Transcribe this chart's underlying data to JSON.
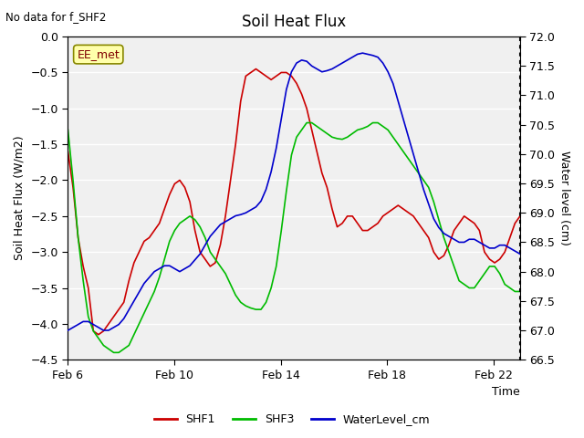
{
  "title": "Soil Heat Flux",
  "top_left_text": "No data for f_SHF2",
  "annotation_box": "EE_met",
  "xlabel": "Time",
  "ylabel_left": "Soil Heat Flux (W/m2)",
  "ylabel_right": "Water level (cm)",
  "ylim_left": [
    -4.5,
    0.0
  ],
  "ylim_right": [
    66.5,
    72.0
  ],
  "yticks_left": [
    0.0,
    -0.5,
    -1.0,
    -1.5,
    -2.0,
    -2.5,
    -3.0,
    -3.5,
    -4.0,
    -4.5
  ],
  "yticks_right": [
    66.5,
    67.0,
    67.5,
    68.0,
    68.5,
    69.0,
    69.5,
    70.0,
    70.5,
    71.0,
    71.5,
    72.0
  ],
  "xtick_labels": [
    "Feb 6",
    "Feb 10",
    "Feb 14",
    "Feb 18",
    "Feb 22"
  ],
  "xtick_positions": [
    0,
    4,
    8,
    12,
    16
  ],
  "color_shf1": "#cc0000",
  "color_shf3": "#00bb00",
  "color_water": "#0000cc",
  "fig_facecolor": "#ffffff",
  "plot_facecolor": "#f0f0f0",
  "grid_color": "#ffffff",
  "shf1": [
    -1.6,
    -2.1,
    -2.8,
    -3.2,
    -3.5,
    -4.1,
    -4.15,
    -4.1,
    -4.0,
    -3.9,
    -3.8,
    -3.7,
    -3.4,
    -3.15,
    -3.0,
    -2.85,
    -2.8,
    -2.7,
    -2.6,
    -2.4,
    -2.2,
    -2.05,
    -2.0,
    -2.1,
    -2.3,
    -2.7,
    -3.0,
    -3.1,
    -3.2,
    -3.15,
    -2.9,
    -2.5,
    -2.0,
    -1.5,
    -0.9,
    -0.55,
    -0.5,
    -0.45,
    -0.5,
    -0.55,
    -0.6,
    -0.55,
    -0.5,
    -0.5,
    -0.55,
    -0.65,
    -0.8,
    -1.0,
    -1.3,
    -1.6,
    -1.9,
    -2.1,
    -2.4,
    -2.65,
    -2.6,
    -2.5,
    -2.5,
    -2.6,
    -2.7,
    -2.7,
    -2.65,
    -2.6,
    -2.5,
    -2.45,
    -2.4,
    -2.35,
    -2.4,
    -2.45,
    -2.5,
    -2.6,
    -2.7,
    -2.8,
    -3.0,
    -3.1,
    -3.05,
    -2.9,
    -2.7,
    -2.6,
    -2.5,
    -2.55,
    -2.6,
    -2.7,
    -3.0,
    -3.1,
    -3.15,
    -3.1,
    -3.0,
    -2.8,
    -2.6,
    -2.5
  ],
  "shf3": [
    -1.3,
    -2.0,
    -2.8,
    -3.4,
    -3.9,
    -4.1,
    -4.2,
    -4.3,
    -4.35,
    -4.4,
    -4.4,
    -4.35,
    -4.3,
    -4.15,
    -4.0,
    -3.85,
    -3.7,
    -3.55,
    -3.35,
    -3.1,
    -2.85,
    -2.7,
    -2.6,
    -2.55,
    -2.5,
    -2.55,
    -2.65,
    -2.8,
    -3.0,
    -3.1,
    -3.2,
    -3.3,
    -3.45,
    -3.6,
    -3.7,
    -3.75,
    -3.78,
    -3.8,
    -3.8,
    -3.7,
    -3.5,
    -3.2,
    -2.7,
    -2.15,
    -1.65,
    -1.4,
    -1.3,
    -1.2,
    -1.2,
    -1.25,
    -1.3,
    -1.35,
    -1.4,
    -1.42,
    -1.43,
    -1.4,
    -1.35,
    -1.3,
    -1.28,
    -1.25,
    -1.2,
    -1.2,
    -1.25,
    -1.3,
    -1.4,
    -1.5,
    -1.6,
    -1.7,
    -1.8,
    -1.9,
    -2.0,
    -2.1,
    -2.3,
    -2.55,
    -2.8,
    -3.0,
    -3.2,
    -3.4,
    -3.45,
    -3.5,
    -3.5,
    -3.4,
    -3.3,
    -3.2,
    -3.2,
    -3.3,
    -3.45,
    -3.5,
    -3.55,
    -3.55
  ],
  "water": [
    67.0,
    67.05,
    67.1,
    67.15,
    67.15,
    67.1,
    67.05,
    67.0,
    67.0,
    67.05,
    67.1,
    67.2,
    67.35,
    67.5,
    67.65,
    67.8,
    67.9,
    68.0,
    68.05,
    68.1,
    68.1,
    68.05,
    68.0,
    68.05,
    68.1,
    68.2,
    68.3,
    68.45,
    68.6,
    68.7,
    68.8,
    68.85,
    68.9,
    68.95,
    68.97,
    69.0,
    69.05,
    69.1,
    69.2,
    69.4,
    69.7,
    70.1,
    70.6,
    71.1,
    71.4,
    71.55,
    71.6,
    71.58,
    71.5,
    71.45,
    71.4,
    71.42,
    71.45,
    71.5,
    71.55,
    71.6,
    71.65,
    71.7,
    71.72,
    71.7,
    71.68,
    71.65,
    71.55,
    71.4,
    71.2,
    70.9,
    70.6,
    70.3,
    70.0,
    69.7,
    69.4,
    69.15,
    68.9,
    68.75,
    68.65,
    68.6,
    68.55,
    68.5,
    68.5,
    68.55,
    68.55,
    68.5,
    68.45,
    68.4,
    68.4,
    68.45,
    68.45,
    68.4,
    68.35,
    68.3
  ]
}
